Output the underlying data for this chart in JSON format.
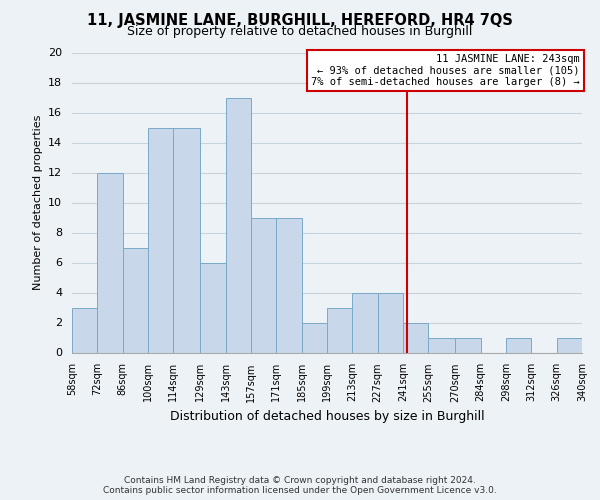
{
  "title": "11, JASMINE LANE, BURGHILL, HEREFORD, HR4 7QS",
  "subtitle": "Size of property relative to detached houses in Burghill",
  "xlabel": "Distribution of detached houses by size in Burghill",
  "ylabel": "Number of detached properties",
  "bin_edges": [
    58,
    72,
    86,
    100,
    114,
    129,
    143,
    157,
    171,
    185,
    199,
    213,
    227,
    241,
    255,
    270,
    284,
    298,
    312,
    326,
    340
  ],
  "bin_labels": [
    "58sqm",
    "72sqm",
    "86sqm",
    "100sqm",
    "114sqm",
    "129sqm",
    "143sqm",
    "157sqm",
    "171sqm",
    "185sqm",
    "199sqm",
    "213sqm",
    "227sqm",
    "241sqm",
    "255sqm",
    "270sqm",
    "284sqm",
    "298sqm",
    "312sqm",
    "326sqm",
    "340sqm"
  ],
  "counts": [
    3,
    12,
    7,
    15,
    15,
    6,
    17,
    9,
    9,
    2,
    3,
    4,
    4,
    2,
    1,
    1,
    0,
    1,
    0,
    1
  ],
  "bar_color": "#c8d8ea",
  "bar_edge_color": "#7aaac8",
  "grid_color": "#c8d4dc",
  "reference_line_x": 243,
  "reference_line_color": "#cc0000",
  "ylim": [
    0,
    20
  ],
  "yticks": [
    0,
    2,
    4,
    6,
    8,
    10,
    12,
    14,
    16,
    18,
    20
  ],
  "annotation_title": "11 JASMINE LANE: 243sqm",
  "annotation_line1": "← 93% of detached houses are smaller (105)",
  "annotation_line2": "7% of semi-detached houses are larger (8) →",
  "annotation_box_color": "#ffffff",
  "annotation_box_edge": "#cc0000",
  "footer_line1": "Contains HM Land Registry data © Crown copyright and database right 2024.",
  "footer_line2": "Contains public sector information licensed under the Open Government Licence v3.0.",
  "background_color": "#edf2f7"
}
